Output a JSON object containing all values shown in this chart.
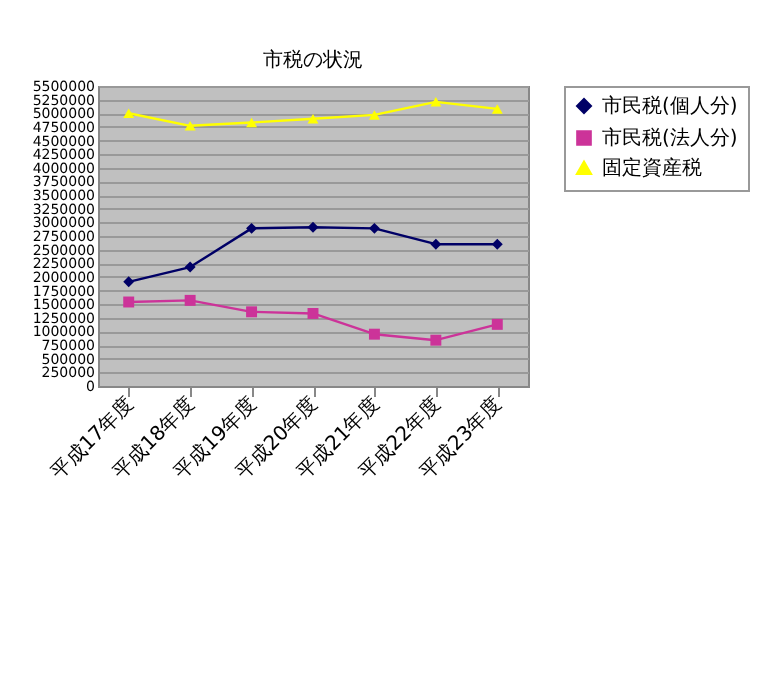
{
  "chart_data": {
    "type": "line",
    "title": "市税の状況",
    "categories": [
      "平成17年度",
      "平成18年度",
      "平成19年度",
      "平成20年度",
      "平成21年度",
      "平成22年度",
      "平成23年度"
    ],
    "series": [
      {
        "name": "市民税(個人分)",
        "color": "#000066",
        "marker": "diamond",
        "values": [
          1910000,
          2180000,
          2890000,
          2910000,
          2890000,
          2600000,
          2600000
        ]
      },
      {
        "name": "市民税(法人分)",
        "color": "#cc3399",
        "marker": "square",
        "values": [
          1540000,
          1570000,
          1360000,
          1330000,
          950000,
          840000,
          1130000
        ]
      },
      {
        "name": "固定資産税",
        "color": "#ffff00",
        "marker": "triangle",
        "values": [
          5000000,
          4770000,
          4830000,
          4900000,
          4970000,
          5210000,
          5080000
        ]
      }
    ],
    "ylim": [
      0,
      5500000
    ],
    "yticks": [
      0,
      250000,
      500000,
      750000,
      1000000,
      1250000,
      1500000,
      1750000,
      2000000,
      2250000,
      2500000,
      2750000,
      3000000,
      3250000,
      3500000,
      3750000,
      4000000,
      4250000,
      4500000,
      4750000,
      5000000,
      5250000,
      5500000
    ],
    "grid": "y",
    "legend": "right"
  }
}
